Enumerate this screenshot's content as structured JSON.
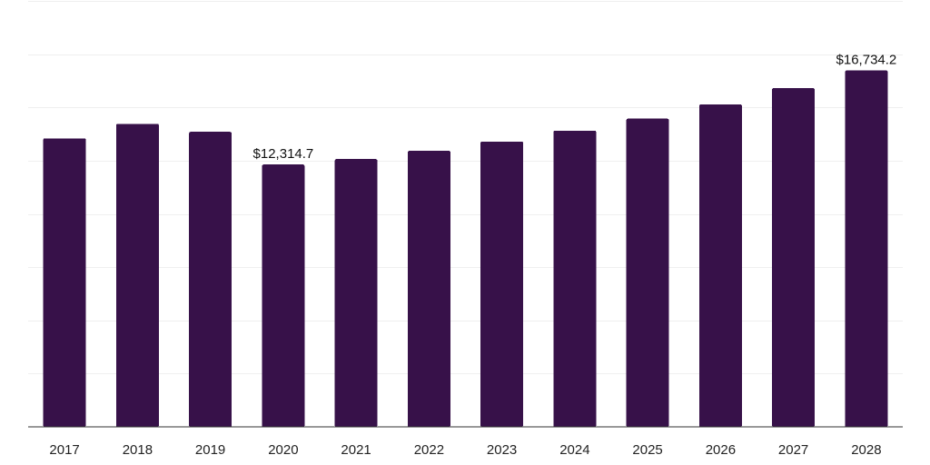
{
  "chart_data": {
    "type": "bar",
    "title": "",
    "xlabel": "",
    "ylabel": "",
    "categories": [
      "2017",
      "2018",
      "2019",
      "2020",
      "2021",
      "2022",
      "2023",
      "2024",
      "2025",
      "2026",
      "2027",
      "2028"
    ],
    "values": [
      13550,
      14230,
      13850,
      12314.7,
      12570,
      12960,
      13400,
      13910,
      14470,
      15140,
      15900,
      16734.2
    ],
    "ylim": [
      0,
      20000
    ],
    "grid": true,
    "legend": "none",
    "annotations": [
      {
        "index": 3,
        "text": "$12,314.7"
      },
      {
        "index": 11,
        "text": "$16,734.2"
      }
    ],
    "colors": {
      "bar": "#371149"
    }
  }
}
